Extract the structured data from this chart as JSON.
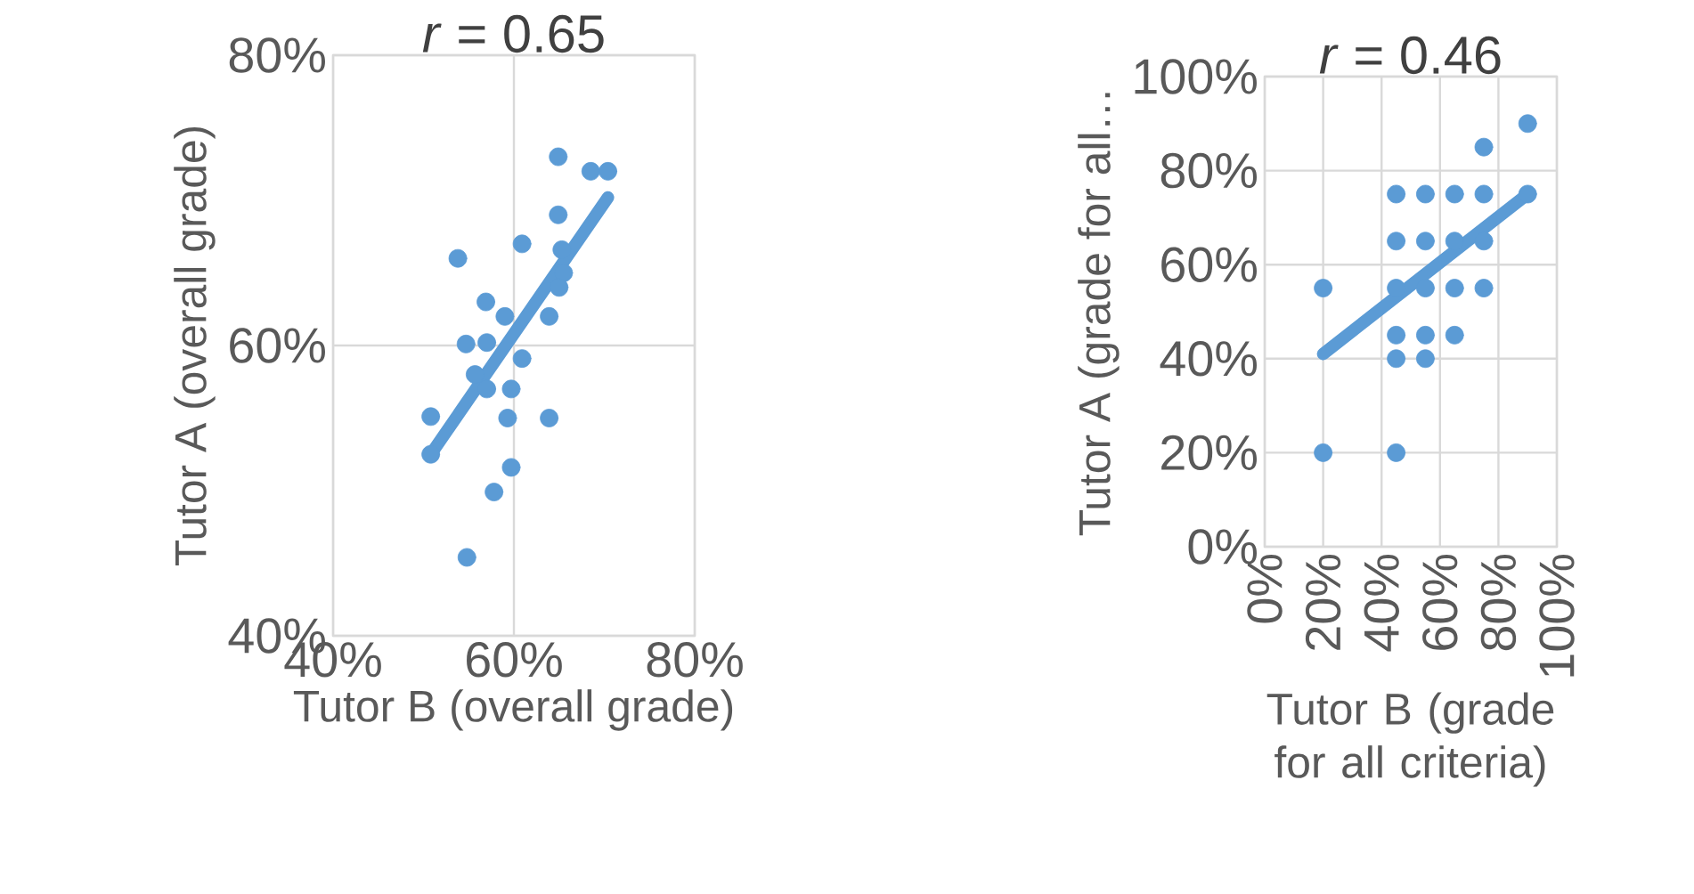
{
  "chart_data": [
    {
      "type": "scatter",
      "title": "*r* = 0.65",
      "xlabel": "Tutor B (overall grade)",
      "ylabel": "Tutor A (overall grade)",
      "grid": true,
      "marker": "circle",
      "xlim": [
        40,
        80
      ],
      "ylim": [
        40,
        80
      ],
      "xticks": [
        {
          "value": 40,
          "label": "40%"
        },
        {
          "value": 60,
          "label": "60%"
        },
        {
          "value": 80,
          "label": "80%"
        }
      ],
      "yticks": [
        {
          "value": 40,
          "label": "40%"
        },
        {
          "value": 60,
          "label": "60%"
        },
        {
          "value": 80,
          "label": "80%"
        }
      ],
      "series": [
        {
          "color": "#5b9bd5",
          "x": [
            64.9,
            68.5,
            70.4,
            64.9,
            60.9,
            53.8,
            65.3,
            65.5,
            65.0,
            56.9,
            59.0,
            63.9,
            54.7,
            57.0,
            60.9,
            55.7,
            57.0,
            59.7,
            50.8,
            59.3,
            63.9,
            50.8,
            59.7,
            57.8,
            54.8
          ],
          "values": [
            73.0,
            72.0,
            72.0,
            69.0,
            67.0,
            66.0,
            66.6,
            65.0,
            64.0,
            63.0,
            62.0,
            62.0,
            60.1,
            60.2,
            59.1,
            58.0,
            57.0,
            57.0,
            55.1,
            55.0,
            55.0,
            52.5,
            51.6,
            49.9,
            45.4
          ]
        },
        {
          "type": "line",
          "marker": "none",
          "color": "#5b9bd5",
          "x": [
            50.8,
            70.4
          ],
          "values": [
            52.5,
            70.2
          ]
        }
      ]
    },
    {
      "type": "scatter",
      "title": "*r* = 0.46",
      "xlabel": "Tutor B (grade for all criteria)",
      "ylabel": "Tutor A (grade for all…",
      "grid": true,
      "marker": "circle",
      "xlim": [
        0,
        100
      ],
      "ylim": [
        0,
        100
      ],
      "xticks": [
        {
          "value": 0,
          "label": "0%"
        },
        {
          "value": 20,
          "label": "20%"
        },
        {
          "value": 40,
          "label": "40%"
        },
        {
          "value": 60,
          "label": "60%"
        },
        {
          "value": 80,
          "label": "80%"
        },
        {
          "value": 100,
          "label": "100%"
        }
      ],
      "yticks": [
        {
          "value": 0,
          "label": "0%"
        },
        {
          "value": 20,
          "label": "20%"
        },
        {
          "value": 40,
          "label": "40%"
        },
        {
          "value": 60,
          "label": "60%"
        },
        {
          "value": 80,
          "label": "80%"
        },
        {
          "value": 100,
          "label": "100%"
        }
      ],
      "series": [
        {
          "color": "#5b9bd5",
          "x": [
            90,
            75,
            45,
            55,
            65,
            75,
            90,
            45,
            55,
            65,
            75,
            20,
            45,
            55,
            65,
            75,
            45,
            55,
            65,
            45,
            55,
            20,
            45
          ],
          "values": [
            90,
            85,
            75,
            75,
            75,
            75,
            75,
            65,
            65,
            65,
            65,
            55,
            55,
            55,
            55,
            55,
            45,
            45,
            45,
            40,
            40,
            20,
            20
          ]
        },
        {
          "type": "line",
          "marker": "none",
          "color": "#5b9bd5",
          "x": [
            20,
            90
          ],
          "values": [
            41,
            75
          ]
        }
      ]
    }
  ]
}
